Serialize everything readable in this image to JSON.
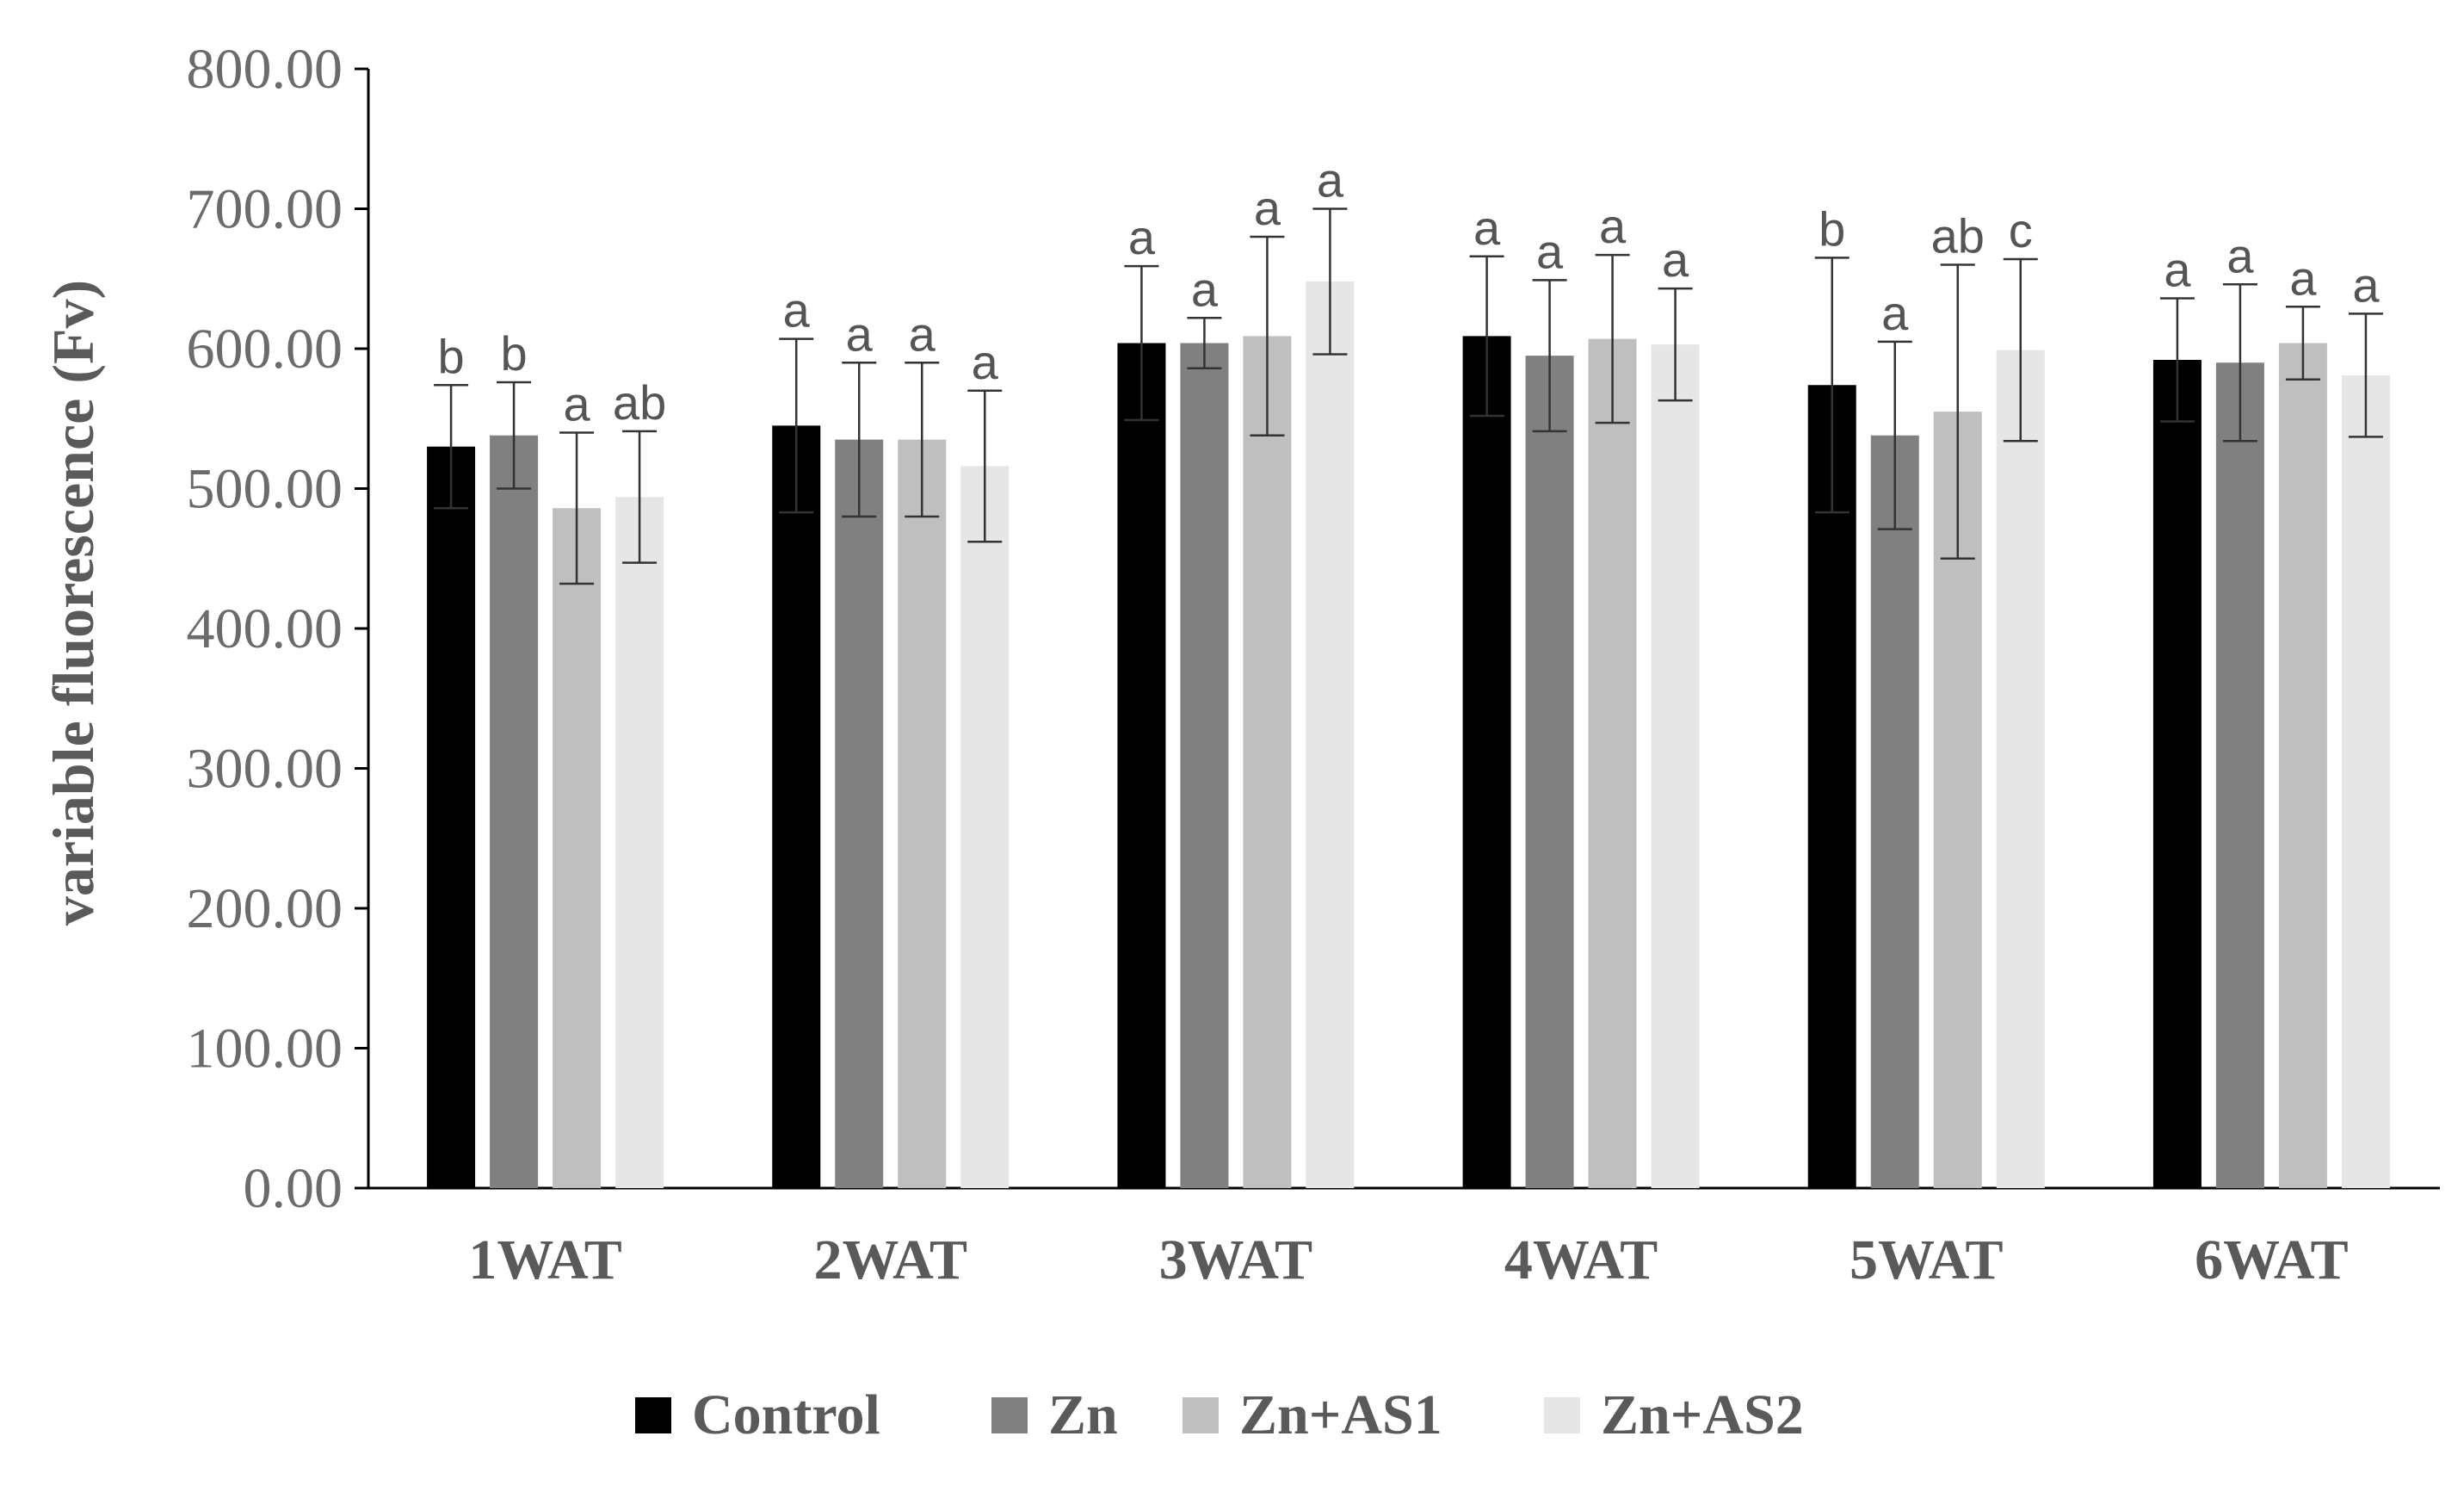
{
  "chart_data": {
    "type": "bar",
    "title": "",
    "xlabel": "",
    "ylabel": "variable fluorescence (Fv)",
    "ylim": [
      0,
      800
    ],
    "yticks": [
      0,
      100,
      200,
      300,
      400,
      500,
      600,
      700,
      800
    ],
    "ytick_labels": [
      "0.00",
      "100.00",
      "200.00",
      "300.00",
      "400.00",
      "500.00",
      "600.00",
      "700.00",
      "800.00"
    ],
    "grid": false,
    "legend_position": "bottom",
    "categories": [
      "1WAT",
      "2WAT",
      "3WAT",
      "4WAT",
      "5WAT",
      "6WAT"
    ],
    "series": [
      {
        "name": "Control",
        "color": "#000000",
        "values": [
          530,
          545,
          604,
          609,
          574,
          592
        ],
        "errors": [
          44,
          62,
          55,
          57,
          91,
          44
        ],
        "labels": [
          "b",
          "a",
          "a",
          "a",
          "b",
          "a"
        ]
      },
      {
        "name": "Zn",
        "color": "#808080",
        "values": [
          538,
          535,
          604,
          595,
          538,
          590
        ],
        "errors": [
          38,
          55,
          18,
          54,
          67,
          56
        ],
        "labels": [
          "b",
          "a",
          "a",
          "a",
          "a",
          "a"
        ]
      },
      {
        "name": "Zn+AS1",
        "color": "#bfbfbf",
        "values": [
          486,
          535,
          609,
          607,
          555,
          604
        ],
        "errors": [
          54,
          55,
          71,
          60,
          105,
          26
        ],
        "labels": [
          "a",
          "a",
          "a",
          "a",
          "ab",
          "a"
        ]
      },
      {
        "name": "Zn+AS2",
        "color": "#e6e6e6",
        "values": [
          494,
          516,
          648,
          603,
          599,
          581
        ],
        "errors": [
          47,
          54,
          52,
          40,
          65,
          44
        ],
        "labels": [
          "ab",
          "a",
          "a",
          "a",
          "c",
          "a"
        ]
      }
    ]
  }
}
